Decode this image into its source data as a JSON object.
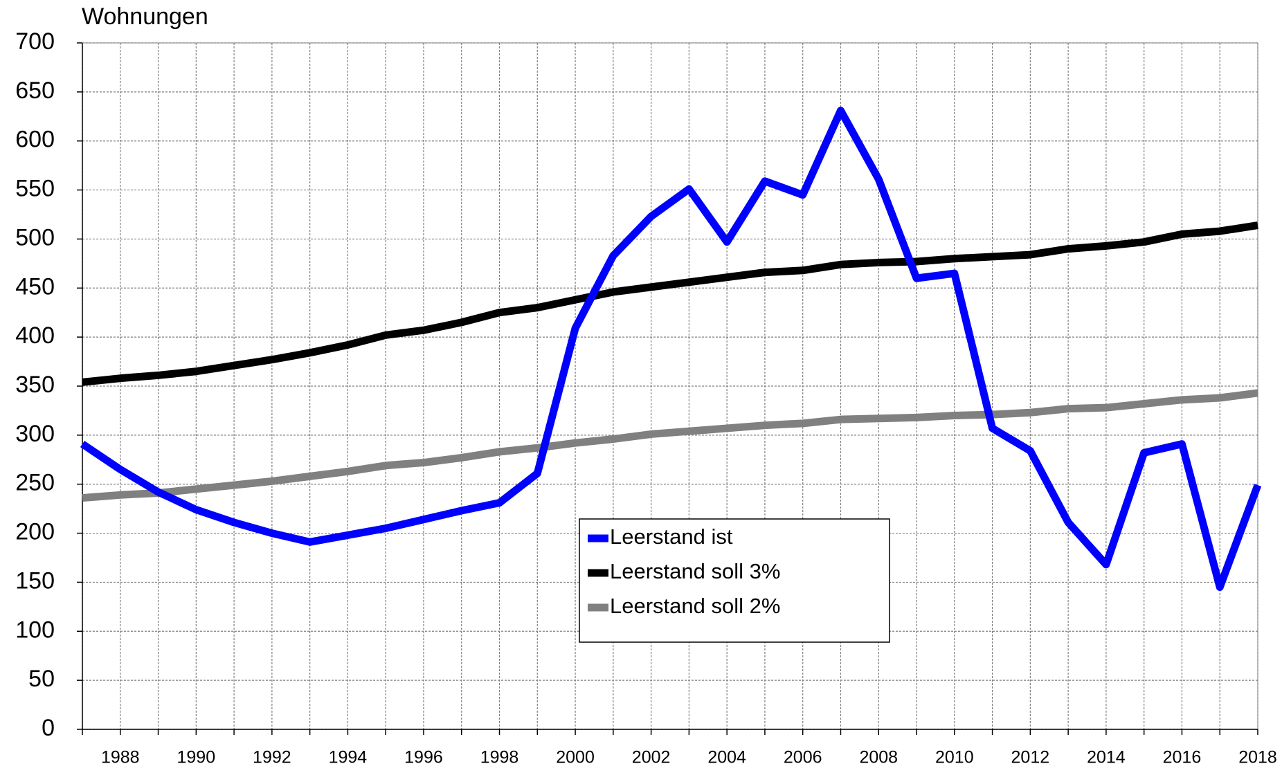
{
  "chart_data": {
    "type": "line",
    "y_label": "Wohnungen",
    "x": [
      1987,
      1988,
      1989,
      1990,
      1991,
      1992,
      1993,
      1994,
      1995,
      1996,
      1997,
      1998,
      1999,
      2000,
      2001,
      2002,
      2003,
      2004,
      2005,
      2006,
      2007,
      2008,
      2009,
      2010,
      2011,
      2012,
      2013,
      2014,
      2015,
      2016,
      2017,
      2018
    ],
    "series": [
      {
        "name": "Leerstand ist",
        "color": "#0000ff",
        "values": [
          291,
          265,
          242,
          224,
          211,
          200,
          191,
          198,
          205,
          214,
          223,
          231,
          261,
          409,
          483,
          523,
          551,
          497,
          559,
          545,
          631,
          561,
          460,
          465,
          307,
          284,
          211,
          168,
          282,
          291,
          145,
          249
        ]
      },
      {
        "name": "Leerstand soll 3%",
        "color": "#000000",
        "values": [
          354,
          358,
          361,
          365,
          371,
          377,
          384,
          392,
          402,
          407,
          415,
          425,
          430,
          438,
          446,
          451,
          456,
          461,
          466,
          468,
          474,
          476,
          477,
          480,
          482,
          484,
          490,
          493,
          497,
          505,
          508,
          514
        ]
      },
      {
        "name": "Leerstand soll 2%",
        "color": "#808080",
        "values": [
          236,
          239,
          241,
          245,
          249,
          253,
          258,
          263,
          269,
          272,
          277,
          283,
          287,
          292,
          296,
          301,
          304,
          307,
          310,
          312,
          316,
          317,
          318,
          320,
          321,
          323,
          327,
          328,
          332,
          336,
          338,
          343
        ]
      }
    ],
    "xlim": [
      1987,
      2018
    ],
    "xticks": [
      1988,
      1990,
      1992,
      1994,
      1996,
      1998,
      2000,
      2002,
      2004,
      2006,
      2008,
      2010,
      2012,
      2014,
      2016,
      2018
    ],
    "xminorticks": [
      1987,
      1989,
      1991,
      1993,
      1995,
      1997,
      1999,
      2001,
      2003,
      2005,
      2007,
      2009,
      2011,
      2013,
      2015,
      2017
    ],
    "ylim": [
      0,
      700
    ],
    "yticks": [
      0,
      50,
      100,
      150,
      200,
      250,
      300,
      350,
      400,
      450,
      500,
      550,
      600,
      650,
      700
    ],
    "grid": true,
    "legend": "center"
  }
}
